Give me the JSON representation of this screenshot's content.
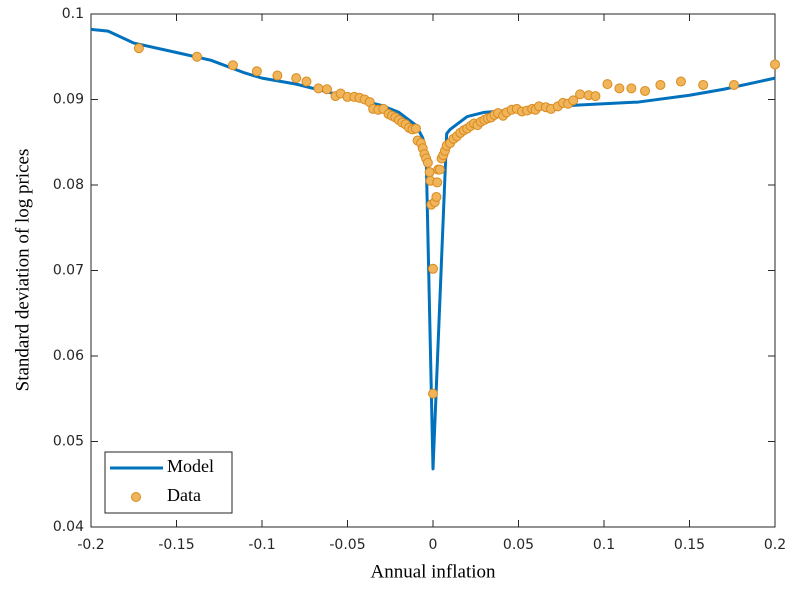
{
  "chart_data": {
    "type": "line",
    "xlabel": "Annual inflation",
    "ylabel": "Standard deviation of log prices",
    "xlim": [
      -0.2,
      0.2
    ],
    "ylim": [
      0.04,
      0.1
    ],
    "xticks": [
      -0.2,
      -0.15,
      -0.1,
      -0.05,
      0,
      0.05,
      0.1,
      0.15,
      0.2
    ],
    "yticks": [
      0.04,
      0.05,
      0.06,
      0.07,
      0.08,
      0.09,
      0.1
    ],
    "legend": "bottom-left",
    "series": [
      {
        "name": "Model",
        "type": "line",
        "color": "#0072bd",
        "x": [
          -0.2,
          -0.19,
          -0.175,
          -0.15,
          -0.13,
          -0.11,
          -0.1,
          -0.08,
          -0.06,
          -0.04,
          -0.03,
          -0.02,
          -0.01,
          -0.006,
          -0.004,
          0,
          0.008,
          0.01,
          0.02,
          0.03,
          0.05,
          0.07,
          0.1,
          0.12,
          0.15,
          0.17,
          0.2
        ],
        "values": [
          0.0982,
          0.098,
          0.0966,
          0.0955,
          0.0946,
          0.0931,
          0.0925,
          0.0918,
          0.0908,
          0.0898,
          0.0893,
          0.0885,
          0.087,
          0.0855,
          0.0835,
          0.0468,
          0.086,
          0.0865,
          0.088,
          0.0885,
          0.0888,
          0.0892,
          0.0895,
          0.0897,
          0.0905,
          0.0912,
          0.0925
        ]
      },
      {
        "name": "Data",
        "type": "scatter",
        "color": "#f0b45a",
        "edge": "#d98b1e",
        "x": [
          -0.172,
          -0.138,
          -0.117,
          -0.103,
          -0.091,
          -0.08,
          -0.074,
          -0.067,
          -0.062,
          -0.057,
          -0.054,
          -0.05,
          -0.046,
          -0.043,
          -0.04,
          -0.037,
          -0.035,
          -0.032,
          -0.029,
          -0.026,
          -0.024,
          -0.022,
          -0.02,
          -0.018,
          -0.016,
          -0.014,
          -0.012,
          -0.01,
          -0.009,
          -0.007,
          -0.006,
          -0.005,
          -0.004,
          -0.003,
          -0.002,
          -0.0015,
          -0.001,
          0,
          0,
          0.001,
          0.002,
          0.0025,
          0.003,
          0.004,
          0.005,
          0.006,
          0.007,
          0.008,
          0.01,
          0.012,
          0.014,
          0.016,
          0.018,
          0.02,
          0.022,
          0.024,
          0.026,
          0.028,
          0.03,
          0.032,
          0.034,
          0.036,
          0.038,
          0.041,
          0.043,
          0.046,
          0.049,
          0.052,
          0.055,
          0.058,
          0.06,
          0.062,
          0.066,
          0.069,
          0.073,
          0.076,
          0.079,
          0.082,
          0.086,
          0.091,
          0.095,
          0.102,
          0.109,
          0.116,
          0.124,
          0.133,
          0.145,
          0.158,
          0.176,
          0.2
        ],
        "values": [
          0.096,
          0.095,
          0.094,
          0.0933,
          0.0928,
          0.0925,
          0.0921,
          0.0913,
          0.0912,
          0.0904,
          0.0907,
          0.0903,
          0.0903,
          0.0902,
          0.09,
          0.0897,
          0.0889,
          0.0888,
          0.0889,
          0.0883,
          0.0881,
          0.0879,
          0.0876,
          0.0873,
          0.0871,
          0.0867,
          0.0865,
          0.0866,
          0.0852,
          0.0849,
          0.0843,
          0.0836,
          0.0831,
          0.0826,
          0.0815,
          0.0805,
          0.0777,
          0.0702,
          0.0556,
          0.078,
          0.0786,
          0.0803,
          0.0818,
          0.0818,
          0.0831,
          0.0835,
          0.084,
          0.0846,
          0.0849,
          0.0854,
          0.0857,
          0.0861,
          0.0864,
          0.0866,
          0.0869,
          0.0872,
          0.087,
          0.0874,
          0.0876,
          0.0878,
          0.0879,
          0.0882,
          0.0884,
          0.0881,
          0.0885,
          0.0888,
          0.0889,
          0.0886,
          0.0887,
          0.0889,
          0.0888,
          0.0892,
          0.0891,
          0.0889,
          0.0892,
          0.0896,
          0.0895,
          0.0899,
          0.0906,
          0.0905,
          0.0904,
          0.0918,
          0.0913,
          0.0913,
          0.091,
          0.0917,
          0.0921,
          0.0917,
          0.0917,
          0.0941
        ]
      }
    ]
  }
}
